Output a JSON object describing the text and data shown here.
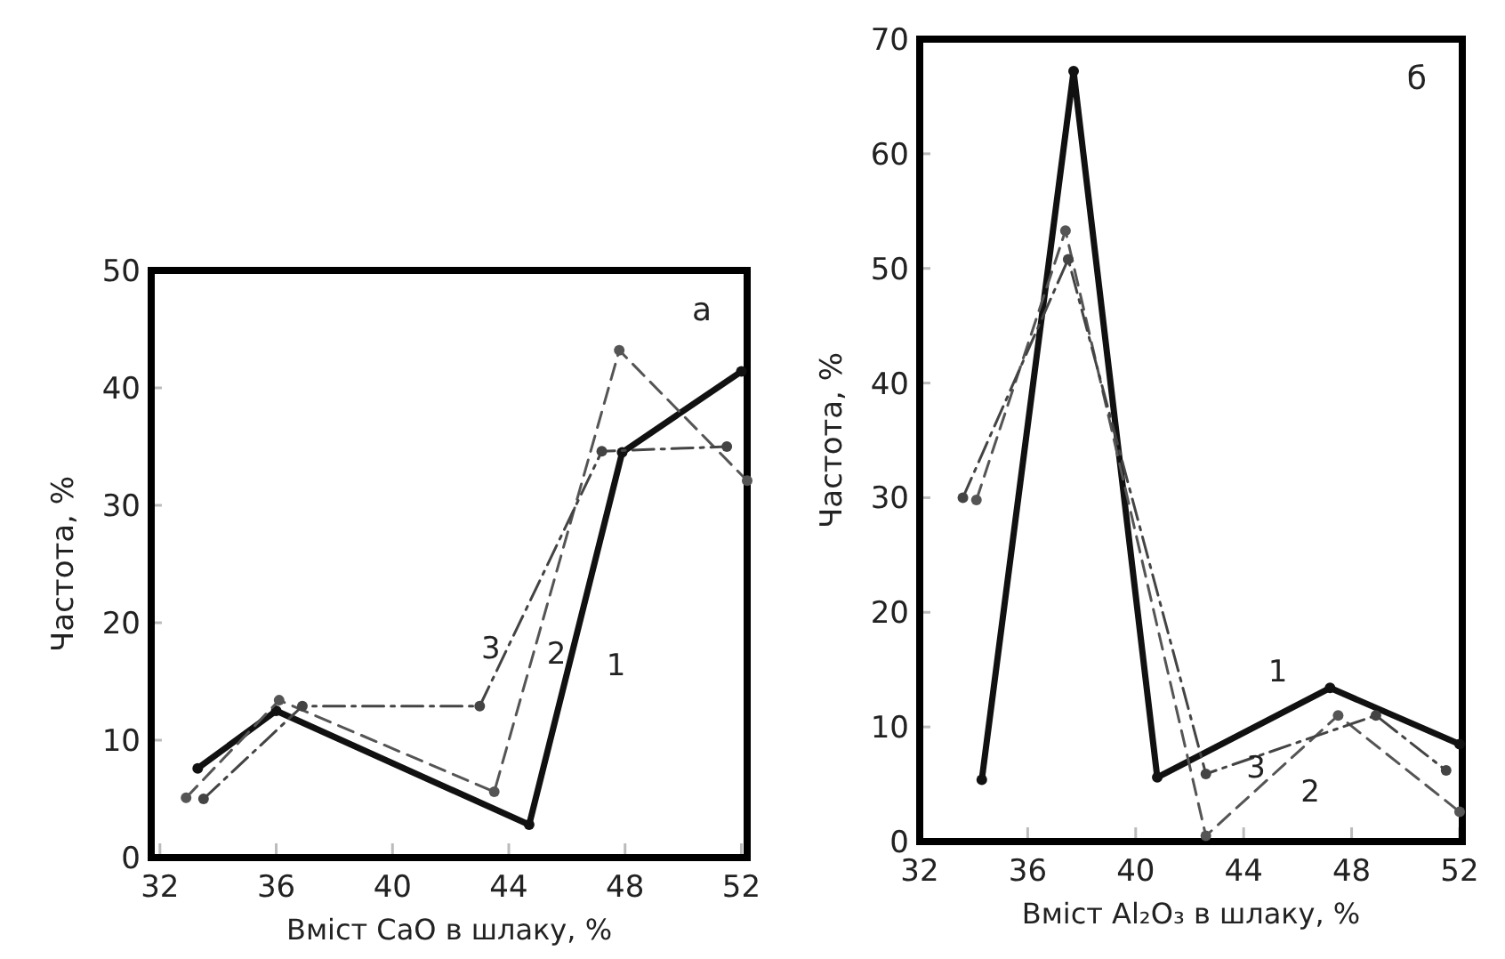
{
  "chart_data": [
    {
      "type": "line",
      "title": "а",
      "xlabel": "Вміст  CaO  в шлаку, %",
      "ylabel": "Частота, %",
      "xlim": [
        31.7,
        52.2
      ],
      "xticks": [
        32,
        36,
        40,
        44,
        48,
        52
      ],
      "ylim": [
        0,
        50
      ],
      "yticks": [
        0,
        10,
        20,
        30,
        40,
        50
      ],
      "marker": "circle",
      "series": [
        {
          "color": "#111111",
          "line_style": "solid",
          "x": [
            33.3,
            36.0,
            44.7,
            47.9,
            52.0
          ],
          "values": [
            7.6,
            12.5,
            2.8,
            34.5,
            41.4
          ]
        },
        {
          "color": "#555555",
          "line_style": "dashed",
          "x": [
            32.9,
            36.1,
            43.5,
            47.8,
            52.2
          ],
          "values": [
            5.1,
            13.4,
            5.6,
            43.2,
            32.1
          ]
        },
        {
          "color": "#444444",
          "line_style": "dashdot",
          "x": [
            33.5,
            36.9,
            43.0,
            47.2,
            51.5
          ],
          "values": [
            5.0,
            12.9,
            12.9,
            34.6,
            35.0
          ]
        }
      ],
      "annotations": [
        "3",
        "2",
        "1"
      ]
    },
    {
      "type": "line",
      "title": "б",
      "xlabel": "Вміст Al₂O₃ в шлаку, %",
      "ylabel": "Частота, %",
      "xlim": [
        32,
        52.1
      ],
      "xticks": [
        32,
        36,
        40,
        44,
        48,
        52
      ],
      "ylim": [
        0,
        70
      ],
      "yticks": [
        0,
        10,
        20,
        30,
        40,
        50,
        60,
        70
      ],
      "marker": "circle",
      "series": [
        {
          "color": "#111111",
          "line_style": "solid",
          "x": [
            34.3,
            37.7,
            40.8,
            47.2,
            52.0
          ],
          "values": [
            5.4,
            67.2,
            5.6,
            13.4,
            8.5
          ]
        },
        {
          "color": "#555555",
          "line_style": "dashed",
          "x": [
            34.1,
            37.4,
            42.6,
            47.5,
            52.0
          ],
          "values": [
            29.8,
            53.3,
            0.5,
            11.0,
            2.6
          ]
        },
        {
          "color": "#444444",
          "line_style": "dashdot",
          "x": [
            33.6,
            37.5,
            42.6,
            48.9,
            51.5
          ],
          "values": [
            30.0,
            50.8,
            5.9,
            11.0,
            6.2
          ]
        }
      ],
      "annotations": [
        "1",
        "3",
        "2"
      ]
    }
  ]
}
